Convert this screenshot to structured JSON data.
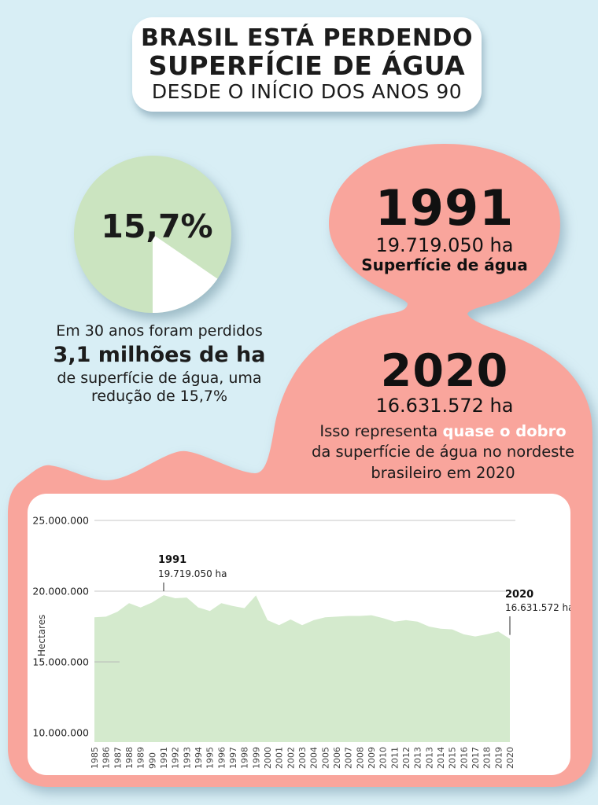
{
  "palette": {
    "background_blue": "#d8eef5",
    "blob_pink": "#f9a59c",
    "pie_green": "#cbe4c0",
    "area_green": "#d4eacd",
    "highlight_white": "#ffffff",
    "text_dark": "#1c1c1c"
  },
  "title_card": {
    "line1": "BRASIL ESTÁ PERDENDO",
    "line2": "SUPERFÍCIE DE ÁGUA",
    "line3": "DESDE O INÍCIO DOS ANOS 90"
  },
  "pie": {
    "label": "15,7%",
    "lost_percent": 15.7,
    "remaining_percent": 84.3
  },
  "pie_caption": {
    "line1": "Em 30 anos foram perdidos",
    "line2": "3,1 milhões de ha",
    "line3": "de superfície de água, uma",
    "line4": "redução de 15,7%"
  },
  "year_1991": {
    "year": "1991",
    "value": "19.719.050 ha",
    "label": "Superfície de água"
  },
  "year_2020": {
    "year": "2020",
    "value": "16.631.572 ha",
    "caption_prefix": "Isso representa ",
    "caption_highlight": "quase o dobro",
    "caption_line2": "da superfície de água no nordeste",
    "caption_line3": "brasileiro em 2020"
  },
  "chart_data": {
    "type": "area",
    "title": "",
    "xlabel": "",
    "ylabel": "Hectares",
    "grid": true,
    "ylim": [
      10000000,
      25000000
    ],
    "y_ticks": [
      "25.000.000",
      "20.000.000",
      "15.000.000",
      "10.000.000"
    ],
    "y_tick_values": [
      25000000,
      20000000,
      15000000,
      10000000
    ],
    "categories": [
      "1985",
      "1986",
      "1987",
      "1988",
      "1989",
      "990",
      "1991",
      "1992",
      "1993",
      "1994",
      "1995",
      "1996",
      "1997",
      "1998",
      "1999",
      "2000",
      "2001",
      "2002",
      "2003",
      "2004",
      "2005",
      "2006",
      "2007",
      "2008",
      "2009",
      "2010",
      "2011",
      "2012",
      "2013",
      "2013",
      "2014",
      "2015",
      "2016",
      "2017",
      "2018",
      "2019",
      "2020"
    ],
    "values": [
      18150000,
      18200000,
      18550000,
      19150000,
      18850000,
      19200000,
      19719050,
      19500000,
      19550000,
      18850000,
      18600000,
      19150000,
      18950000,
      18800000,
      19700000,
      17950000,
      17600000,
      18000000,
      17600000,
      17950000,
      18150000,
      18200000,
      18250000,
      18250000,
      18300000,
      18100000,
      17850000,
      17950000,
      17850000,
      17500000,
      17350000,
      17300000,
      16950000,
      16800000,
      16950000,
      17150000,
      16631572
    ],
    "fill_color": "#d4eacd",
    "annotations": [
      {
        "index": 6,
        "line1": "1991",
        "line2": "19.719.050 ha"
      },
      {
        "index": 36,
        "line1": "2020",
        "line2": "16.631.572 ha"
      }
    ]
  }
}
